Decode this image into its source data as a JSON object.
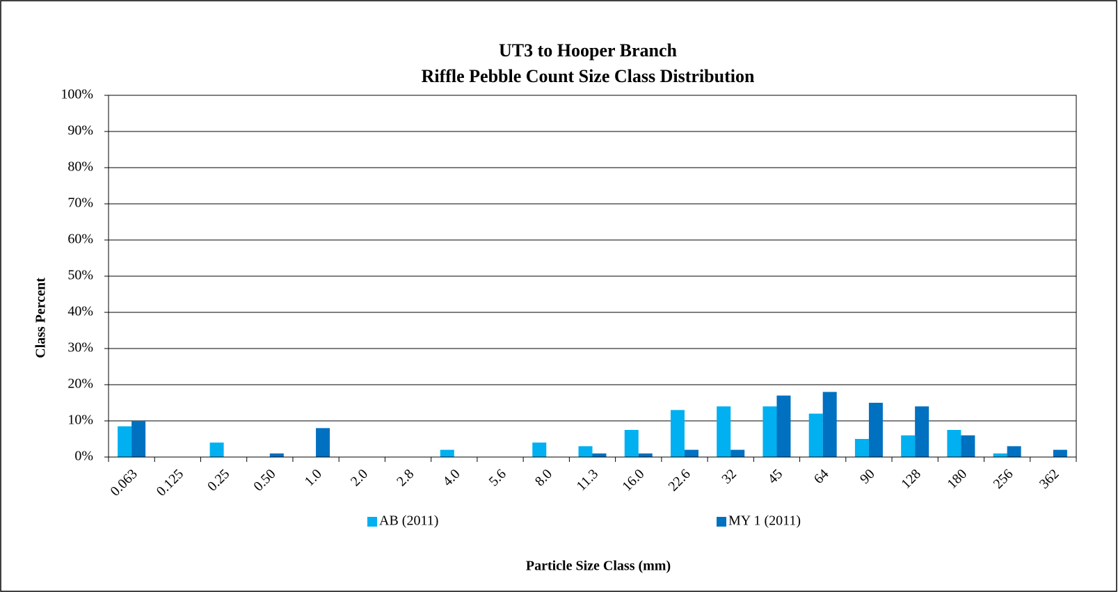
{
  "chart_data": {
    "type": "bar",
    "title": "UT3 to Hooper Branch",
    "subtitle": "Riffle Pebble Count Size Class Distribution",
    "x_label": "Particle Size Class (mm)",
    "y_label": "Class Percent",
    "categories": [
      "0.063",
      "0.125",
      "0.25",
      "0.50",
      "1.0",
      "2.0",
      "2.8",
      "4.0",
      "5.6",
      "8.0",
      "11.3",
      "16.0",
      "22.6",
      "32",
      "45",
      "64",
      "90",
      "128",
      "180",
      "256",
      "362"
    ],
    "series": [
      {
        "name": "AB (2011)",
        "color": "#00b0f0",
        "values": [
          8.5,
          0,
          4,
          0,
          0,
          0,
          0,
          2,
          0,
          4,
          3,
          7.5,
          13,
          14,
          14,
          12,
          5,
          6,
          7.5,
          1,
          0
        ]
      },
      {
        "name": "MY 1 (2011)",
        "color": "#0070c0",
        "values": [
          10,
          0,
          0,
          1,
          8,
          0,
          0,
          0,
          0,
          0,
          1,
          1,
          2,
          2,
          17,
          18,
          15,
          14,
          6,
          3,
          2
        ]
      }
    ],
    "ylim": [
      0,
      100
    ],
    "yticks": [
      {
        "value": 0,
        "label": "0%"
      },
      {
        "value": 10,
        "label": "10%"
      },
      {
        "value": 20,
        "label": "20%"
      },
      {
        "value": 30,
        "label": "30%"
      },
      {
        "value": 40,
        "label": "40%"
      },
      {
        "value": 50,
        "label": "50%"
      },
      {
        "value": 60,
        "label": "60%"
      },
      {
        "value": 70,
        "label": "70%"
      },
      {
        "value": 80,
        "label": "80%"
      },
      {
        "value": 90,
        "label": "90%"
      },
      {
        "value": 100,
        "label": "100%"
      }
    ],
    "grid": true,
    "legend": "bottom"
  }
}
